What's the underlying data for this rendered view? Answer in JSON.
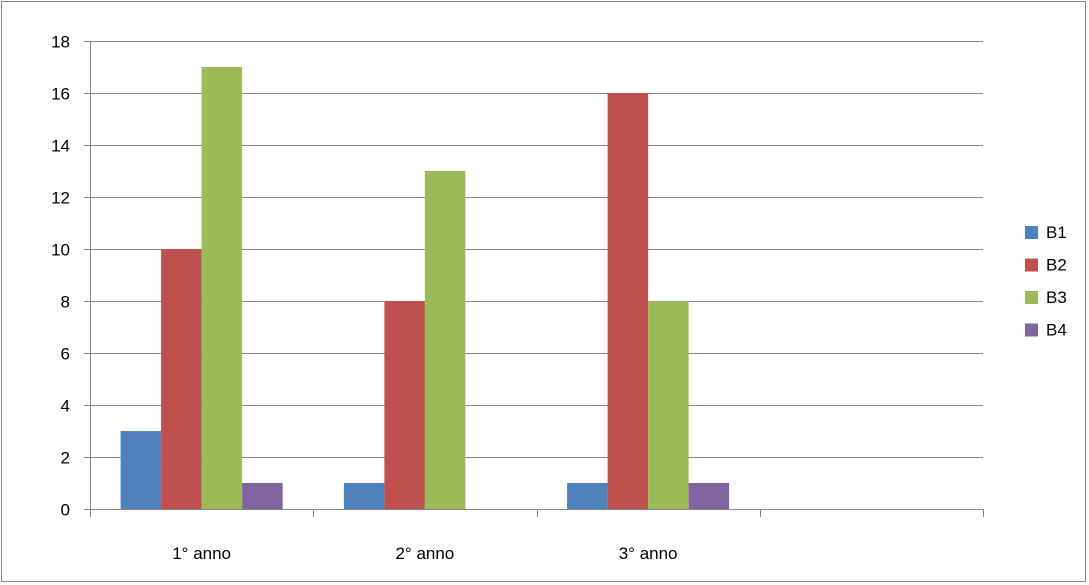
{
  "chart_data": {
    "type": "bar",
    "categories": [
      "1° anno",
      "2° anno",
      "3° anno",
      ""
    ],
    "series": [
      {
        "name": "B1",
        "values": [
          3,
          1,
          1,
          null
        ],
        "color": "#4F81BD"
      },
      {
        "name": "B2",
        "values": [
          10,
          8,
          16,
          null
        ],
        "color": "#C0504D"
      },
      {
        "name": "B3",
        "values": [
          17,
          13,
          8,
          null
        ],
        "color": "#9BBB59"
      },
      {
        "name": "B4",
        "values": [
          1,
          0,
          1,
          null
        ],
        "color": "#8064A2"
      }
    ],
    "ylim": [
      0,
      18
    ],
    "yticks": [
      0,
      2,
      4,
      6,
      8,
      10,
      12,
      14,
      16,
      18
    ],
    "grid": true,
    "legend_position": "right",
    "title": "",
    "xlabel": "",
    "ylabel": ""
  }
}
